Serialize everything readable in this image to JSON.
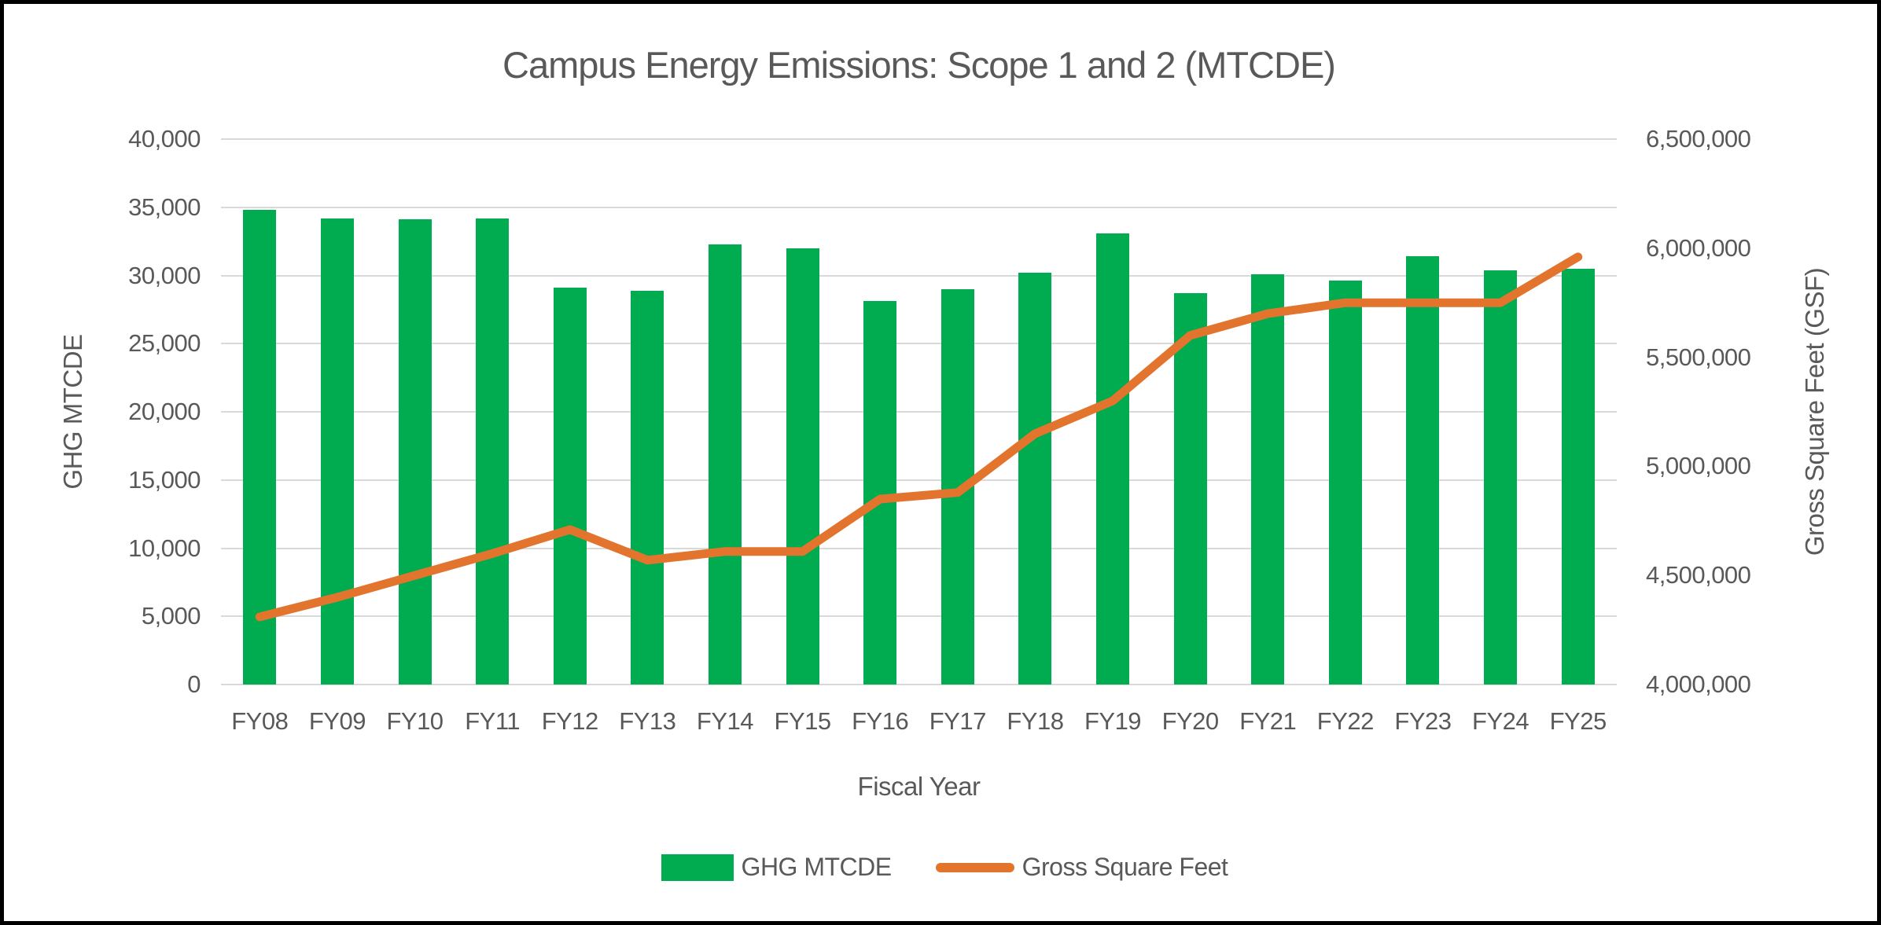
{
  "chart_data": {
    "type": "combo-bar-line",
    "title": "Campus Energy Emissions: Scope 1 and 2 (MTCDE)",
    "xlabel": "Fiscal Year",
    "ylabel_left": "GHG MTCDE",
    "ylabel_right": "Gross Square Feet (GSF)",
    "grid": true,
    "legend_position": "bottom",
    "categories": [
      "FY08",
      "FY09",
      "FY10",
      "FY11",
      "FY12",
      "FY13",
      "FY14",
      "FY15",
      "FY16",
      "FY17",
      "FY18",
      "FY19",
      "FY20",
      "FY21",
      "FY22",
      "FY23",
      "FY24",
      "FY25"
    ],
    "series": [
      {
        "name": "GHG MTCDE",
        "type": "bar",
        "axis": "left",
        "color": "#00ac4f",
        "values": [
          34800,
          34200,
          34100,
          34200,
          29100,
          28900,
          32300,
          32000,
          28100,
          29000,
          30200,
          33100,
          28700,
          30100,
          29600,
          31400,
          30400,
          30500
        ]
      },
      {
        "name": "Gross Square Feet",
        "type": "line",
        "axis": "right",
        "color": "#e2742e",
        "values": [
          4310000,
          4400000,
          4500000,
          4600000,
          4710000,
          4570000,
          4610000,
          4610000,
          4850000,
          4880000,
          5150000,
          5300000,
          5600000,
          5700000,
          5750000,
          5750000,
          5750000,
          5960000
        ]
      }
    ],
    "left_axis": {
      "min": 0,
      "max": 40000,
      "ticks": [
        {
          "label": "0",
          "value": 0
        },
        {
          "label": "5,000",
          "value": 5000
        },
        {
          "label": "10,000",
          "value": 10000
        },
        {
          "label": "15,000",
          "value": 15000
        },
        {
          "label": "20,000",
          "value": 20000
        },
        {
          "label": "25,000",
          "value": 25000
        },
        {
          "label": "30,000",
          "value": 30000
        },
        {
          "label": "35,000",
          "value": 35000
        },
        {
          "label": "40,000",
          "value": 40000
        }
      ]
    },
    "right_axis": {
      "min": 4000000,
      "max": 6500000,
      "ticks": [
        {
          "label": "4,000,000",
          "value": 4000000
        },
        {
          "label": "4,500,000",
          "value": 4500000
        },
        {
          "label": "5,000,000",
          "value": 5000000
        },
        {
          "label": "5,500,000",
          "value": 5500000
        },
        {
          "label": "6,000,000",
          "value": 6000000
        },
        {
          "label": "6,500,000",
          "value": 6500000
        }
      ]
    }
  },
  "colors": {
    "bar_green": "#00ac4f",
    "line_orange": "#e2742e",
    "gridline": "#d9d9d9",
    "text_gray": "#595959",
    "background": "#ffffff",
    "border": "#000000"
  }
}
